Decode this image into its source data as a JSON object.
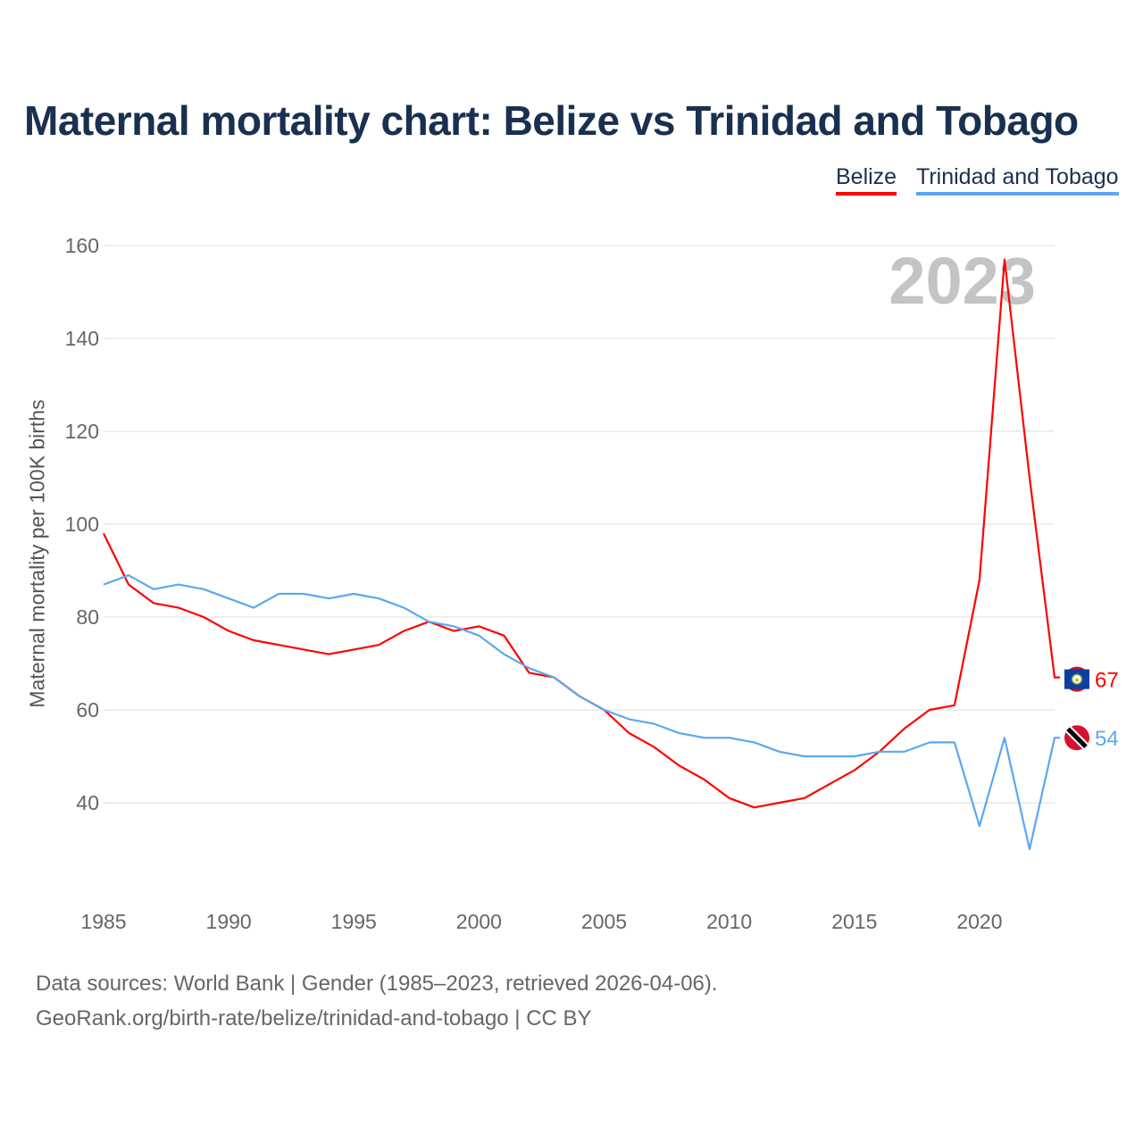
{
  "title": "Maternal mortality chart: Belize vs Trinidad and Tobago",
  "footer": {
    "line1": "Data sources: World Bank | Gender (1985–2023, retrieved 2026-04-06).",
    "line2": "GeoRank.org/birth-rate/belize/trinidad-and-tobago | CC BY"
  },
  "chart_data": {
    "type": "line",
    "title": "Maternal mortality chart: Belize vs Trinidad and Tobago",
    "xlabel": "",
    "ylabel": "Maternal mortality per 100K births",
    "year_watermark": "2023",
    "xlim": [
      1985,
      2023
    ],
    "ylim": [
      20,
      160
    ],
    "yticks": [
      40,
      60,
      80,
      100,
      120,
      140,
      160
    ],
    "xticks": [
      1985,
      1990,
      1995,
      2000,
      2005,
      2010,
      2015,
      2020
    ],
    "grid": true,
    "legend_position": "top-right",
    "x": [
      1985,
      1986,
      1987,
      1988,
      1989,
      1990,
      1991,
      1992,
      1993,
      1994,
      1995,
      1996,
      1997,
      1998,
      1999,
      2000,
      2001,
      2002,
      2003,
      2004,
      2005,
      2006,
      2007,
      2008,
      2009,
      2010,
      2011,
      2012,
      2013,
      2014,
      2015,
      2016,
      2017,
      2018,
      2019,
      2020,
      2021,
      2022,
      2023
    ],
    "series": [
      {
        "name": "Belize",
        "color": "#ff0000",
        "end_label": "67",
        "values": [
          98,
          87,
          83,
          82,
          80,
          77,
          75,
          74,
          73,
          72,
          73,
          74,
          77,
          79,
          77,
          78,
          76,
          68,
          67,
          63,
          60,
          55,
          52,
          48,
          45,
          41,
          39,
          40,
          41,
          44,
          47,
          51,
          56,
          60,
          61,
          88,
          157,
          110,
          67
        ]
      },
      {
        "name": "Trinidad and Tobago",
        "color": "#5aa8f0",
        "end_label": "54",
        "values": [
          87,
          89,
          86,
          87,
          86,
          84,
          82,
          85,
          85,
          84,
          85,
          84,
          82,
          79,
          78,
          76,
          72,
          69,
          67,
          63,
          60,
          58,
          57,
          55,
          54,
          54,
          53,
          51,
          50,
          50,
          50,
          51,
          51,
          53,
          53,
          35,
          54,
          30,
          54
        ]
      }
    ]
  }
}
